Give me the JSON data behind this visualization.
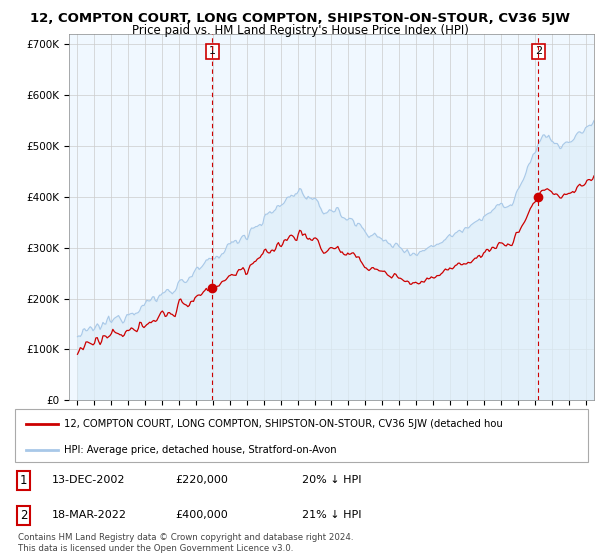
{
  "title": "12, COMPTON COURT, LONG COMPTON, SHIPSTON-ON-STOUR, CV36 5JW",
  "subtitle": "Price paid vs. HM Land Registry's House Price Index (HPI)",
  "ytick_values": [
    0,
    100000,
    200000,
    300000,
    400000,
    500000,
    600000,
    700000
  ],
  "ylim": [
    0,
    720000
  ],
  "xlim_start": 1994.5,
  "xlim_end": 2025.5,
  "transaction1": {
    "date_num": 2002.96,
    "price": 220000,
    "label": "1",
    "pct": "20% ↓ HPI",
    "date_str": "13-DEC-2002"
  },
  "transaction2": {
    "date_num": 2022.21,
    "price": 400000,
    "label": "2",
    "pct": "21% ↓ HPI",
    "date_str": "18-MAR-2022"
  },
  "legend_line1": "12, COMPTON COURT, LONG COMPTON, SHIPSTON-ON-STOUR, CV36 5JW (detached hou",
  "legend_line2": "HPI: Average price, detached house, Stratford-on-Avon",
  "footer": "Contains HM Land Registry data © Crown copyright and database right 2024.\nThis data is licensed under the Open Government Licence v3.0.",
  "hpi_color": "#a8c8e8",
  "hpi_fill_color": "#ddeef8",
  "price_color": "#cc0000",
  "dashed_line_color": "#cc0000",
  "marker_color": "#cc0000",
  "bg_color": "#ffffff",
  "grid_color": "#cccccc",
  "label_box_color": "#cc0000"
}
